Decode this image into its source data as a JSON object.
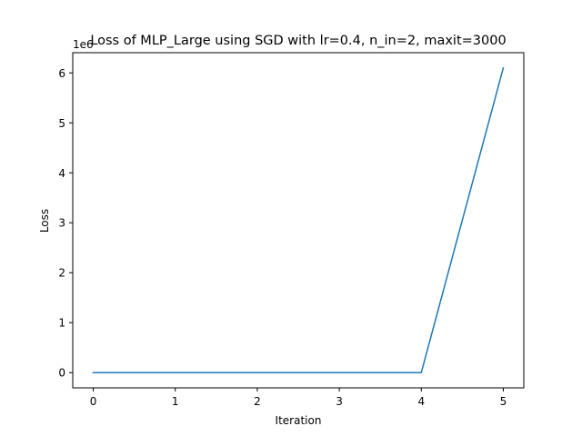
{
  "chart_data": {
    "type": "line",
    "title": "Loss of MLP_Large using SGD with lr=0.4, n_in=2, maxit=3000",
    "xlabel": "Iteration",
    "ylabel": "Loss",
    "offset_text": "1e6",
    "x": [
      0,
      1,
      2,
      3,
      4,
      5
    ],
    "series": [
      {
        "name": "",
        "color": "#1f77b4",
        "values": [
          0,
          0,
          0,
          0,
          0,
          6100000
        ]
      }
    ],
    "xlim": [
      -0.25,
      5.25
    ],
    "ylim": [
      -305000,
      6405000
    ],
    "xticks": [
      0,
      1,
      2,
      3,
      4,
      5
    ],
    "xtick_labels": [
      "0",
      "1",
      "2",
      "3",
      "4",
      "5"
    ],
    "yticks": [
      0,
      1000000,
      2000000,
      3000000,
      4000000,
      5000000,
      6000000
    ],
    "ytick_labels": [
      "0",
      "1",
      "2",
      "3",
      "4",
      "5",
      "6"
    ],
    "grid": false,
    "legend": "none"
  }
}
